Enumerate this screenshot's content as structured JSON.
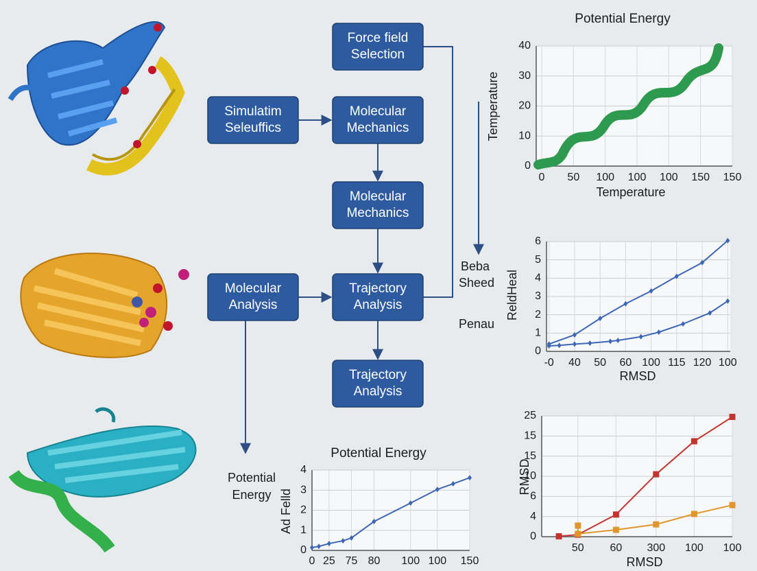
{
  "nodes": [
    {
      "lines": [
        "Force field",
        "Selection"
      ]
    },
    {
      "lines": [
        "Simulatim",
        "Seleuffics"
      ]
    },
    {
      "lines": [
        "Molecular",
        "Mechanics"
      ]
    },
    {
      "lines": [
        "Molecular",
        "Mechanics"
      ]
    },
    {
      "lines": [
        "Molecular",
        "Analysis"
      ]
    },
    {
      "lines": [
        "Trajectory",
        "Analysis"
      ]
    },
    {
      "lines": [
        "Trajectory",
        "Analysis"
      ]
    }
  ],
  "side_labels": [
    "Beba",
    "Sheed",
    "Penau",
    "Potential",
    "Energy"
  ],
  "charts": [
    {
      "type": "line",
      "title": "Potential Energy",
      "xlabel": "Temperature",
      "ylabel": "Temperature",
      "categories": [
        "0",
        "50",
        "100",
        "100",
        "100",
        "150",
        "150"
      ],
      "ylim": [
        0,
        40
      ],
      "yticks": [
        0,
        10,
        20,
        30,
        40
      ],
      "grid": true,
      "series": []
    },
    {
      "type": "line",
      "xlabel": "RMSD",
      "ylabel": "ReldHeal",
      "xlim": [
        -0.1,
        7.1
      ],
      "xticks": [
        {
          "value": 0,
          "label": "-0"
        },
        {
          "value": 1,
          "label": "40"
        },
        {
          "value": 2,
          "label": "50"
        },
        {
          "value": 3,
          "label": "60"
        },
        {
          "value": 4,
          "label": "100"
        },
        {
          "value": 5,
          "label": "115"
        },
        {
          "value": 6,
          "label": "120"
        },
        {
          "value": 7,
          "label": "100"
        }
      ],
      "ylim": [
        0,
        6
      ],
      "yticks": [
        0,
        1,
        2,
        3,
        4,
        5,
        6
      ],
      "grid": true,
      "series": [
        {
          "color": "#3d67b4",
          "x": [
            0,
            1,
            2,
            3,
            4,
            5,
            6,
            7
          ],
          "values": [
            0.4,
            0.9,
            1.8,
            2.6,
            3.3,
            4.1,
            4.85,
            6.05
          ]
        },
        {
          "color": "#3d67b4",
          "x": [
            0,
            0.4,
            1.0,
            1.6,
            2.4,
            2.7,
            3.6,
            4.3,
            5.25,
            6.3,
            7.0
          ],
          "values": [
            0.3,
            0.33,
            0.4,
            0.45,
            0.55,
            0.6,
            0.8,
            1.05,
            1.5,
            2.1,
            2.75
          ]
        }
      ]
    },
    {
      "type": "line",
      "title": "Potential Energy",
      "ylabel": "Ad Felld",
      "xlim": [
        0,
        6
      ],
      "xticks": [
        {
          "value": 0,
          "label": "0"
        },
        {
          "value": 0.65,
          "label": "25"
        },
        {
          "value": 1.5,
          "label": "75"
        },
        {
          "value": 2.36,
          "label": "80"
        },
        {
          "value": 3.75,
          "label": "100"
        },
        {
          "value": 4.77,
          "label": "100"
        },
        {
          "value": 6,
          "label": "150"
        }
      ],
      "ylim": [
        0,
        4
      ],
      "yticks": [
        0,
        1,
        2,
        3,
        4
      ],
      "grid": true,
      "series": [
        {
          "color": "#3d67b4",
          "x": [
            0,
            0.26,
            0.65,
            1.18,
            1.5,
            2.36,
            3.75,
            4.77,
            5.37,
            6
          ],
          "values": [
            0.14,
            0.2,
            0.34,
            0.48,
            0.62,
            1.44,
            2.36,
            3.04,
            3.32,
            3.62
          ]
        }
      ]
    },
    {
      "type": "line",
      "xlabel": "RMSD",
      "ylabel": "RMSD",
      "xlim": [
        0,
        5
      ],
      "xticks": [
        {
          "value": 0.95,
          "label": "50"
        },
        {
          "value": 1.95,
          "label": "60"
        },
        {
          "value": 3.0,
          "label": "300"
        },
        {
          "value": 4.0,
          "label": "100"
        },
        {
          "value": 5.0,
          "label": "100"
        }
      ],
      "ylim": [
        0,
        6
      ],
      "yticks": [
        {
          "value": 0,
          "label": "0"
        },
        {
          "value": 1,
          "label": "4"
        },
        {
          "value": 2,
          "label": "6"
        },
        {
          "value": 3,
          "label": "10"
        },
        {
          "value": 4,
          "label": "15"
        },
        {
          "value": 5,
          "label": "15"
        },
        {
          "value": 6,
          "label": "25"
        }
      ],
      "grid": true,
      "series": [
        {
          "color": "#c2352f",
          "x": [
            0.45,
            0.95,
            1.95,
            3.0,
            4.0,
            5.0
          ],
          "values": [
            0.02,
            0.1,
            1.1,
            3.1,
            4.74,
            5.95
          ]
        },
        {
          "color": "#e0962c",
          "x": [
            0.95,
            0.95,
            1.95,
            3.0,
            4.0,
            5.0
          ],
          "values": [
            0.55,
            0.14,
            0.34,
            0.61,
            1.13,
            1.57
          ]
        }
      ]
    }
  ]
}
